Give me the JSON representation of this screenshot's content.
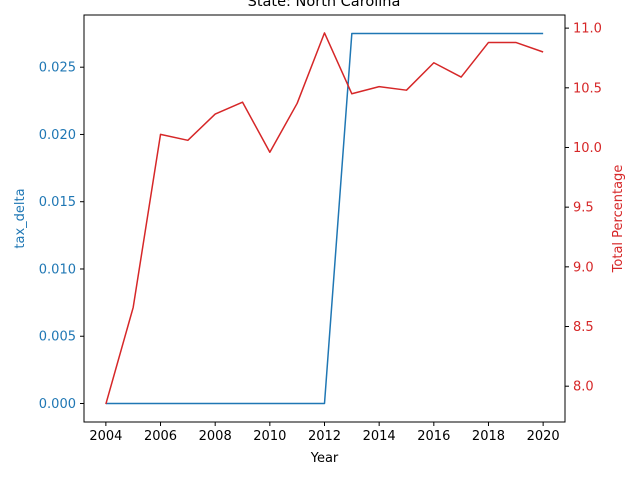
{
  "chart_data": {
    "type": "line",
    "title": "State: North Carolina",
    "xlabel": "Year",
    "ylabel_left": "tax_delta",
    "ylabel_right": "Total Percentage",
    "x": [
      2004,
      2005,
      2006,
      2007,
      2008,
      2009,
      2010,
      2011,
      2012,
      2013,
      2014,
      2015,
      2016,
      2017,
      2018,
      2019,
      2020
    ],
    "xlim": [
      2003.2,
      2020.8
    ],
    "x_ticks": [
      2004,
      2006,
      2008,
      2010,
      2012,
      2014,
      2016,
      2018,
      2020
    ],
    "left_axis": {
      "ylim": [
        -0.001375,
        0.02888
      ],
      "ticks": [
        0.0,
        0.005,
        0.01,
        0.015,
        0.02,
        0.025
      ],
      "tick_labels": [
        "0.000",
        "0.005",
        "0.010",
        "0.015",
        "0.020",
        "0.025"
      ],
      "color": "#1f77b4"
    },
    "right_axis": {
      "ylim": [
        7.7,
        11.11
      ],
      "ticks": [
        8.0,
        8.5,
        9.0,
        9.5,
        10.0,
        10.5,
        11.0
      ],
      "tick_labels": [
        "8.0",
        "8.5",
        "9.0",
        "9.5",
        "10.0",
        "10.5",
        "11.0"
      ],
      "color": "#d62728"
    },
    "series": [
      {
        "axis": "left",
        "color": "#1f77b4",
        "values": [
          0,
          0,
          0,
          0,
          0,
          0,
          0,
          0,
          0,
          0.0275,
          0.0275,
          0.0275,
          0.0275,
          0.0275,
          0.0275,
          0.0275,
          0.0275
        ]
      },
      {
        "axis": "right",
        "color": "#d62728",
        "values": [
          7.85,
          8.66,
          10.11,
          10.06,
          10.28,
          10.38,
          9.96,
          10.37,
          10.96,
          10.45,
          10.51,
          10.48,
          10.71,
          10.59,
          10.88,
          10.88,
          10.8
        ]
      }
    ],
    "grid": false,
    "legend": "none"
  }
}
